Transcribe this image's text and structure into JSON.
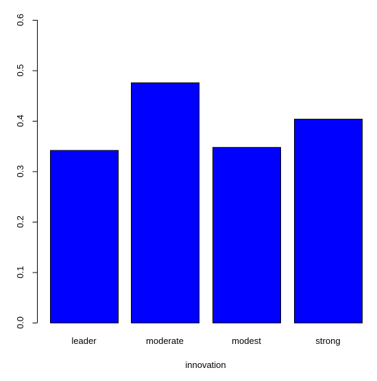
{
  "chart_data": {
    "type": "bar",
    "categories": [
      "leader",
      "moderate",
      "modest",
      "strong"
    ],
    "values": [
      0.342,
      0.476,
      0.348,
      0.404
    ],
    "title": "",
    "xlabel": "innovation",
    "ylabel": "",
    "ylim": [
      0,
      0.6
    ],
    "yticks": [
      "0.0",
      "0.1",
      "0.2",
      "0.3",
      "0.4",
      "0.5",
      "0.6"
    ],
    "grid": false,
    "legend": "none",
    "bar_color": "#0000ff",
    "bar_border_color": "#000000"
  }
}
